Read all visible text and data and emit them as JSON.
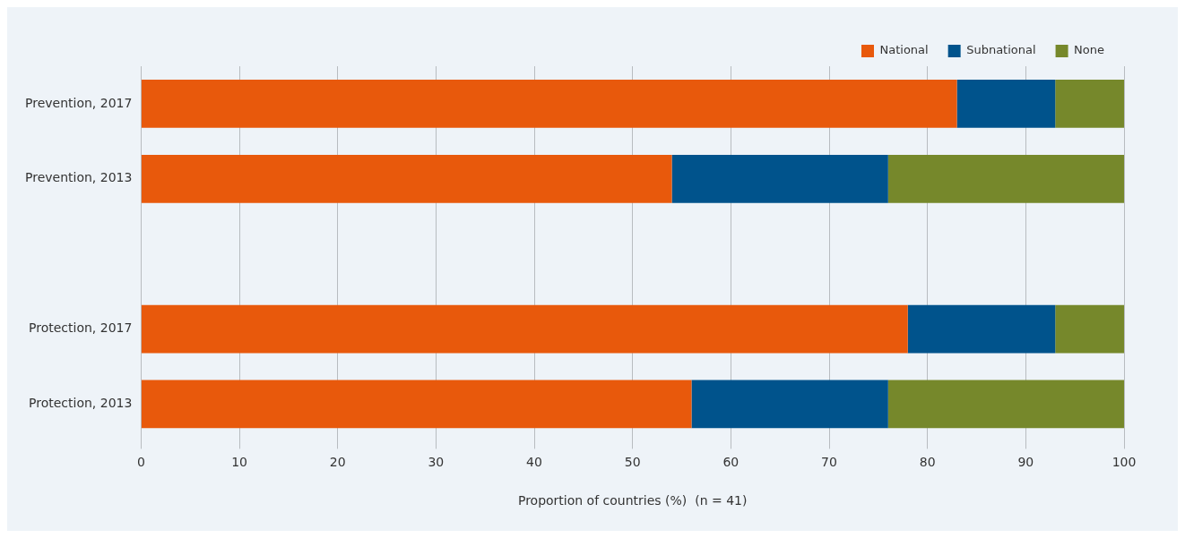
{
  "chart_data": {
    "type": "bar",
    "orientation": "horizontal",
    "stacked": true,
    "xlabel": "Proportion of countries (%)  (n = 41)",
    "categories": [
      "Prevention, 2017",
      "Prevention, 2013",
      null,
      "Protection, 2017",
      "Protection, 2013"
    ],
    "series": [
      {
        "name": "National",
        "color": "#e8590c",
        "values": [
          83,
          54,
          null,
          78,
          56
        ]
      },
      {
        "name": "Subnational",
        "color": "#00538c",
        "values": [
          10,
          22,
          null,
          15,
          20
        ]
      },
      {
        "name": "None",
        "color": "#76882b",
        "values": [
          7,
          24,
          null,
          7,
          24
        ]
      }
    ],
    "xlim": [
      0,
      100
    ],
    "xticks": [
      0,
      10,
      20,
      30,
      40,
      50,
      60,
      70,
      80,
      90,
      100
    ],
    "grid": "x",
    "legend": "top right"
  }
}
